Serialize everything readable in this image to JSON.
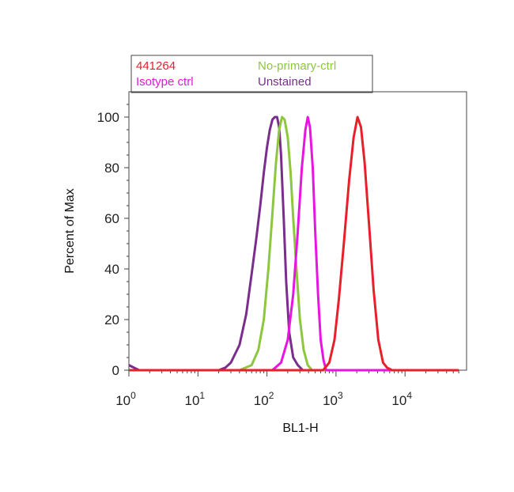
{
  "chart_data": {
    "type": "line",
    "title": "",
    "xlabel": "BL1-H",
    "ylabel": "Percent of Max",
    "xscale": "log",
    "xlim": [
      1,
      60000
    ],
    "ylim": [
      0,
      110
    ],
    "grid": false,
    "legend_position": "top",
    "x_ticks": [
      {
        "value": 1,
        "base": "10",
        "exp": "0"
      },
      {
        "value": 10,
        "base": "10",
        "exp": "1"
      },
      {
        "value": 100,
        "base": "10",
        "exp": "2"
      },
      {
        "value": 1000,
        "base": "10",
        "exp": "3"
      },
      {
        "value": 10000,
        "base": "10",
        "exp": "4"
      }
    ],
    "y_ticks": [
      "0",
      "20",
      "40",
      "60",
      "80",
      "100"
    ],
    "legend": [
      {
        "label": "441264",
        "color": "#e8202a"
      },
      {
        "label": "No-primary-ctrl",
        "color": "#8dc63f"
      },
      {
        "label": "Isotype ctrl",
        "color": "#e815e0"
      },
      {
        "label": "Unstained",
        "color": "#7b2d8e"
      }
    ],
    "series": [
      {
        "name": "Unstained",
        "color": "#7b2d8e",
        "points": [
          [
            1,
            2
          ],
          [
            1.4,
            0
          ],
          [
            20,
            0
          ],
          [
            25,
            1
          ],
          [
            30,
            3
          ],
          [
            40,
            10
          ],
          [
            50,
            22
          ],
          [
            60,
            38
          ],
          [
            70,
            52
          ],
          [
            80,
            65
          ],
          [
            90,
            78
          ],
          [
            100,
            88
          ],
          [
            110,
            95
          ],
          [
            120,
            99
          ],
          [
            130,
            100
          ],
          [
            140,
            100
          ],
          [
            150,
            96
          ],
          [
            160,
            85
          ],
          [
            175,
            60
          ],
          [
            190,
            35
          ],
          [
            210,
            15
          ],
          [
            240,
            5
          ],
          [
            280,
            2
          ],
          [
            330,
            0
          ],
          [
            60000,
            0
          ]
        ]
      },
      {
        "name": "No-primary-ctrl",
        "color": "#8dc63f",
        "points": [
          [
            1,
            0
          ],
          [
            40,
            0
          ],
          [
            60,
            2
          ],
          [
            75,
            8
          ],
          [
            90,
            20
          ],
          [
            105,
            40
          ],
          [
            120,
            62
          ],
          [
            135,
            82
          ],
          [
            150,
            95
          ],
          [
            165,
            100
          ],
          [
            180,
            99
          ],
          [
            200,
            92
          ],
          [
            220,
            78
          ],
          [
            240,
            60
          ],
          [
            270,
            38
          ],
          [
            300,
            20
          ],
          [
            340,
            8
          ],
          [
            390,
            2
          ],
          [
            450,
            0
          ],
          [
            60000,
            0
          ]
        ]
      },
      {
        "name": "Isotype ctrl",
        "color": "#e815e0",
        "points": [
          [
            1,
            0
          ],
          [
            120,
            0
          ],
          [
            160,
            3
          ],
          [
            200,
            12
          ],
          [
            240,
            30
          ],
          [
            280,
            55
          ],
          [
            320,
            80
          ],
          [
            360,
            95
          ],
          [
            390,
            100
          ],
          [
            420,
            96
          ],
          [
            460,
            80
          ],
          [
            500,
            55
          ],
          [
            550,
            30
          ],
          [
            600,
            12
          ],
          [
            660,
            4
          ],
          [
            720,
            0
          ],
          [
            60000,
            0
          ]
        ]
      },
      {
        "name": "441264",
        "color": "#e8202a",
        "points": [
          [
            1,
            0
          ],
          [
            650,
            0
          ],
          [
            800,
            3
          ],
          [
            950,
            12
          ],
          [
            1100,
            28
          ],
          [
            1300,
            50
          ],
          [
            1550,
            75
          ],
          [
            1800,
            92
          ],
          [
            2050,
            100
          ],
          [
            2300,
            96
          ],
          [
            2600,
            82
          ],
          [
            3000,
            58
          ],
          [
            3500,
            32
          ],
          [
            4100,
            12
          ],
          [
            4800,
            3
          ],
          [
            5500,
            1
          ],
          [
            6500,
            0
          ],
          [
            10000,
            0
          ],
          [
            60000,
            0
          ]
        ]
      }
    ]
  }
}
